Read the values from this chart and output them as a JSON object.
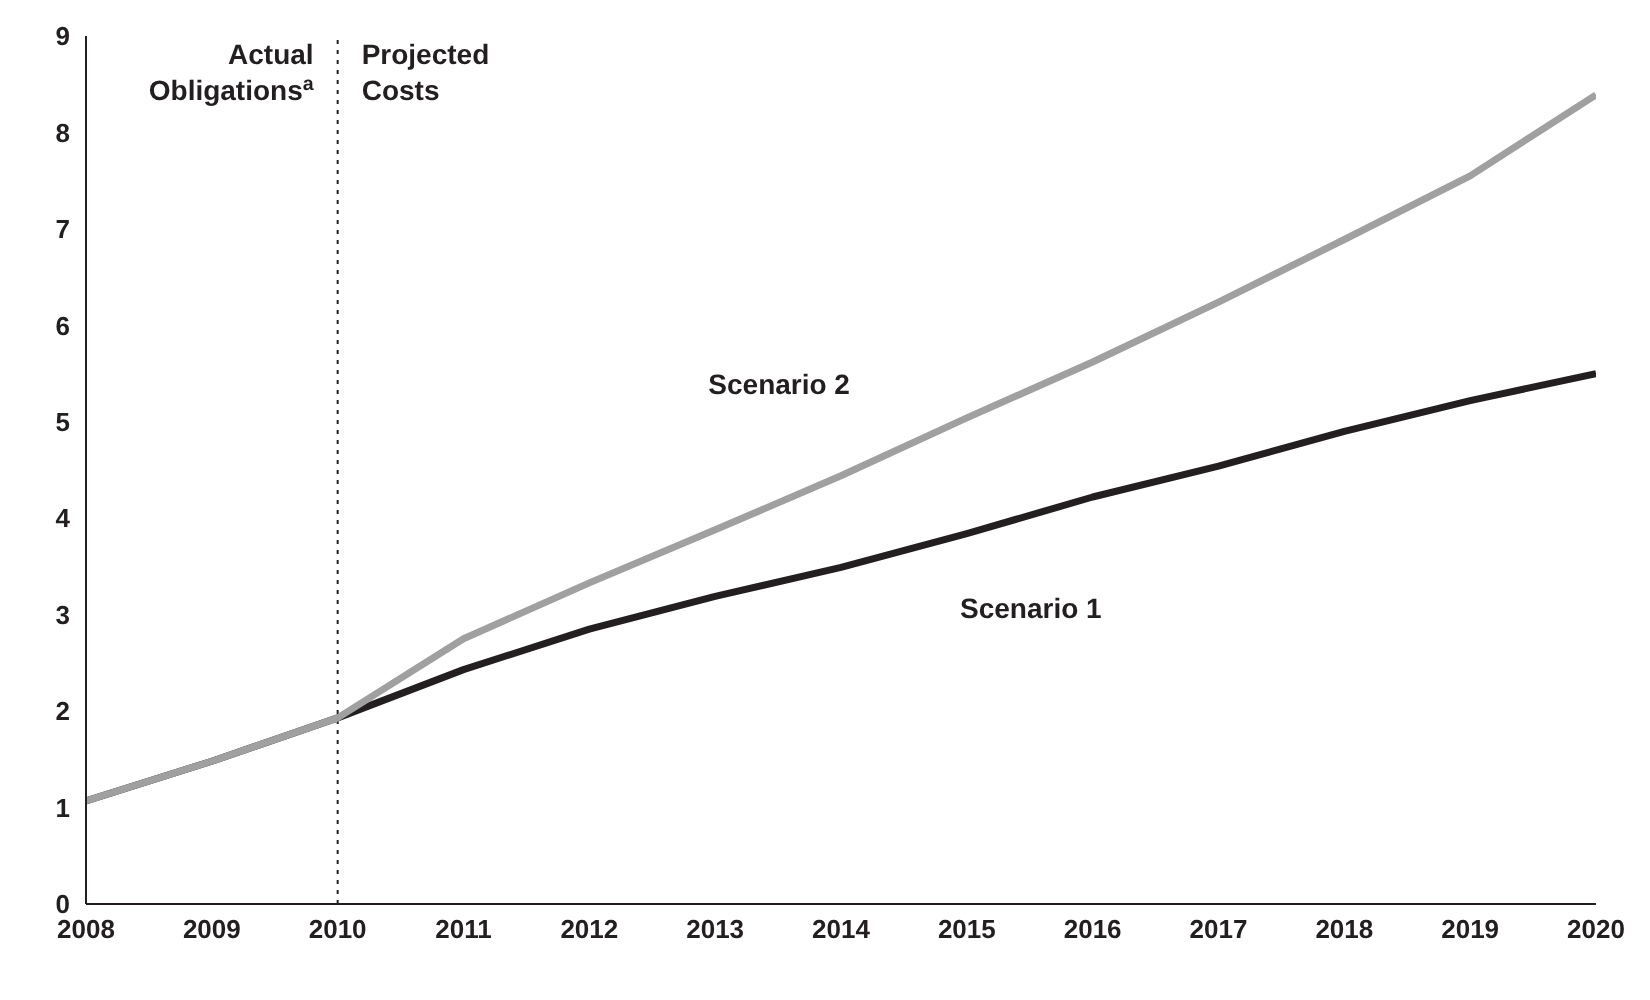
{
  "chart_data": {
    "type": "line",
    "x": [
      2008,
      2009,
      2010,
      2011,
      2012,
      2013,
      2014,
      2015,
      2016,
      2017,
      2018,
      2019,
      2020
    ],
    "series": [
      {
        "name": "Scenario 1",
        "color": "#231f20",
        "values": [
          1.07,
          1.48,
          1.93,
          2.43,
          2.85,
          3.19,
          3.49,
          3.84,
          4.22,
          4.54,
          4.9,
          5.22,
          5.5
        ]
      },
      {
        "name": "Scenario 2",
        "color": "#a0a0a0",
        "values": [
          1.07,
          1.48,
          1.93,
          2.75,
          3.33,
          3.88,
          4.44,
          5.04,
          5.62,
          6.24,
          6.89,
          7.55,
          8.39
        ]
      }
    ],
    "xlim": [
      2008,
      2020
    ],
    "xticks": [
      2008,
      2009,
      2010,
      2011,
      2012,
      2013,
      2014,
      2015,
      2016,
      2017,
      2018,
      2019,
      2020
    ],
    "ylim": [
      0,
      9
    ],
    "yticks": [
      0,
      1,
      2,
      3,
      4,
      5,
      6,
      7,
      8,
      9
    ],
    "ref_lines": [
      {
        "axis": "x",
        "value": 2010,
        "color": "#231f20",
        "line_style": "dotted"
      }
    ],
    "annotations": [
      "Actual\nObligations$^{a}$",
      "Projected\nCosts"
    ],
    "grid": false,
    "legend": false,
    "marker": "none",
    "line_style": "solid"
  }
}
